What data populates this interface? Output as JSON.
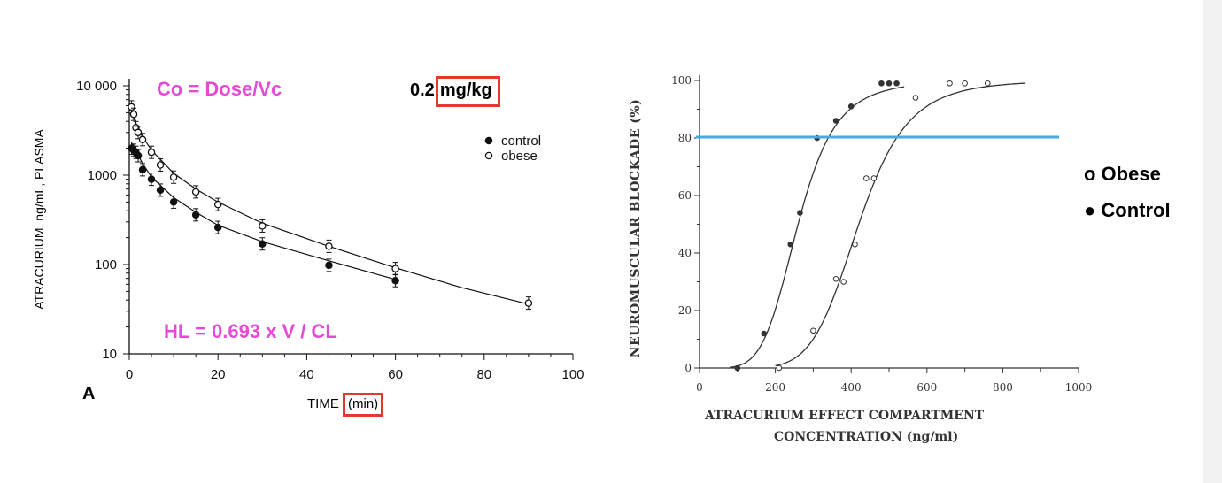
{
  "chart_data": [
    {
      "type": "scatter",
      "panel_label": "A",
      "xlabel": "TIME",
      "xlabel_unit": "(min)",
      "ylabel": "ATRACURIUM, ng/mL, PLASMA",
      "y_scale": "log",
      "xlim": [
        0,
        100
      ],
      "ylim": [
        10,
        10000
      ],
      "x_ticks": [
        "0",
        "20",
        "40",
        "60",
        "80",
        "100"
      ],
      "y_ticks": [
        "10",
        "100",
        "1000",
        "10 000"
      ],
      "legend_position": "top-right",
      "series": [
        {
          "name": "control",
          "marker": "filled-circle",
          "points": [
            [
              0.5,
              2000
            ],
            [
              1,
              1900
            ],
            [
              1.5,
              1800
            ],
            [
              2,
              1650
            ],
            [
              3,
              1150
            ],
            [
              5,
              900
            ],
            [
              7,
              680
            ],
            [
              10,
              500
            ],
            [
              15,
              360
            ],
            [
              20,
              260
            ],
            [
              30,
              170
            ],
            [
              45,
              98
            ],
            [
              60,
              66
            ]
          ],
          "fit": [
            [
              0.5,
              2300
            ],
            [
              3,
              1350
            ],
            [
              5,
              950
            ],
            [
              10,
              560
            ],
            [
              15,
              385
            ],
            [
              20,
              275
            ],
            [
              30,
              180
            ],
            [
              45,
              110
            ],
            [
              60,
              68
            ]
          ]
        },
        {
          "name": "obese",
          "marker": "open-circle",
          "points": [
            [
              0.5,
              5800
            ],
            [
              1,
              4800
            ],
            [
              1.5,
              3400
            ],
            [
              2,
              3000
            ],
            [
              3,
              2500
            ],
            [
              5,
              1800
            ],
            [
              7,
              1300
            ],
            [
              10,
              950
            ],
            [
              15,
              650
            ],
            [
              20,
              470
            ],
            [
              30,
              270
            ],
            [
              45,
              160
            ],
            [
              60,
              90
            ],
            [
              90,
              37
            ]
          ],
          "fit": [
            [
              0.5,
              5500
            ],
            [
              2,
              3200
            ],
            [
              5,
              1900
            ],
            [
              10,
              1050
            ],
            [
              15,
              700
            ],
            [
              20,
              500
            ],
            [
              30,
              290
            ],
            [
              45,
              160
            ],
            [
              60,
              92
            ],
            [
              75,
              55
            ],
            [
              90,
              36
            ]
          ]
        }
      ]
    },
    {
      "type": "scatter",
      "xlabel": "ATRACURIUM EFFECT COMPARTMENT",
      "xlabel_line2": "CONCENTRATION (ng/ml)",
      "ylabel": "NEUROMUSCULAR BLOCKADE (%)",
      "xlim": [
        0,
        1000
      ],
      "ylim": [
        0,
        100
      ],
      "x_ticks": [
        "0",
        "200",
        "400",
        "600",
        "800",
        "1000"
      ],
      "y_ticks": [
        "0",
        "20",
        "40",
        "60",
        "80",
        "100"
      ],
      "reference_line_y": 80,
      "series": [
        {
          "name": "Control",
          "marker": "filled-circle",
          "points": [
            [
              100,
              0
            ],
            [
              170,
              12
            ],
            [
              240,
              43
            ],
            [
              265,
              54
            ],
            [
              310,
              80
            ],
            [
              360,
              86
            ],
            [
              400,
              91
            ],
            [
              480,
              99
            ],
            [
              500,
              99
            ],
            [
              520,
              99
            ]
          ]
        },
        {
          "name": "Obese",
          "marker": "open-circle",
          "points": [
            [
              210,
              0
            ],
            [
              300,
              13
            ],
            [
              360,
              31
            ],
            [
              380,
              30
            ],
            [
              410,
              43
            ],
            [
              440,
              66
            ],
            [
              460,
              66
            ],
            [
              570,
              94
            ],
            [
              660,
              99
            ],
            [
              700,
              99
            ],
            [
              760,
              99
            ]
          ]
        }
      ]
    }
  ],
  "annotations": {
    "c0_formula": "Co = Dose/Vc",
    "hl_formula": "HL = 0.693 x V / CL",
    "dose_value": "0.2",
    "dose_unit": "mg/kg"
  },
  "legends": {
    "left": [
      {
        "label": "control",
        "marker": "filled-circle"
      },
      {
        "label": "obese",
        "marker": "open-circle"
      }
    ],
    "right": [
      {
        "label": "o Obese"
      },
      {
        "label": "● Control"
      }
    ]
  },
  "colors": {
    "annotation_pink": "#e64ad6",
    "highlight_red": "#e03a2e",
    "reference_line_blue": "#4aa8e0",
    "ink": "#111111"
  }
}
